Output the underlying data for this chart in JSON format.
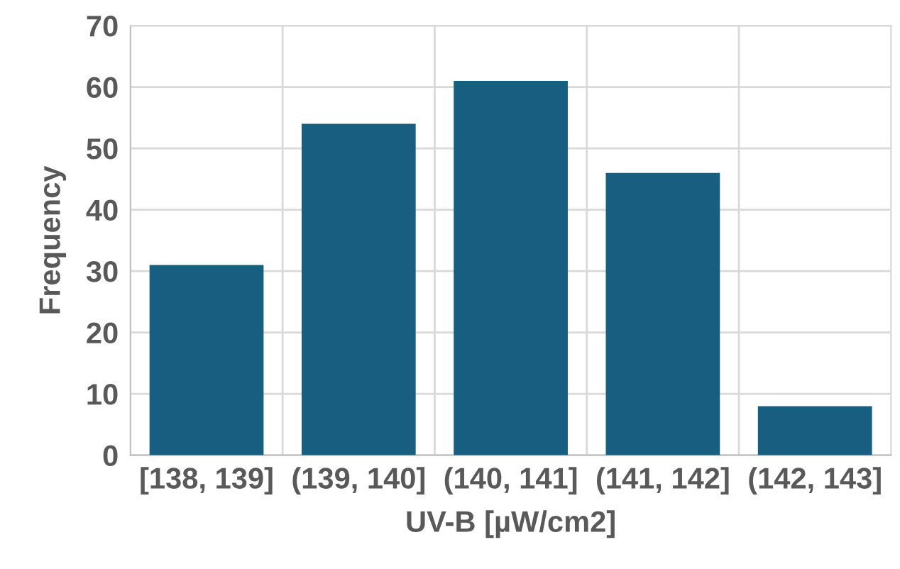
{
  "chart_data": {
    "type": "bar",
    "xlabel": "UV-B [µW/cm2]",
    "ylabel": "Frequency",
    "categories": [
      "[138, 139]",
      "(139, 140]",
      "(140, 141]",
      "(141, 142]",
      "(142, 143]"
    ],
    "values": [
      31,
      54,
      61,
      46,
      8
    ],
    "color": "#175e81",
    "ylim": [
      0,
      70
    ],
    "yticks": [
      0,
      10,
      20,
      30,
      40,
      50,
      60,
      70
    ],
    "grid": true
  }
}
